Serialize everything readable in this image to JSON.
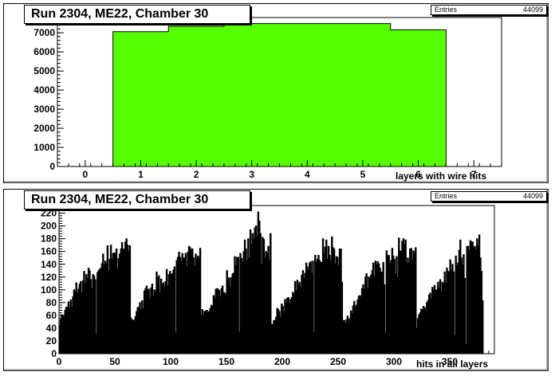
{
  "chart_data": [
    {
      "type": "bar",
      "title": "Run 2304, ME22, Chamber 30",
      "xlabel": "layers with wire hits",
      "ylabel": "",
      "stats": {
        "label": "Entries",
        "value": "44099"
      },
      "xlim": [
        -0.5,
        7.5
      ],
      "ylim": [
        0,
        7800
      ],
      "xticks": [
        "0",
        "1",
        "2",
        "3",
        "4",
        "5",
        "6",
        "7"
      ],
      "yticks": [
        "0",
        "1000",
        "2000",
        "3000",
        "4000",
        "5000",
        "6000",
        "7000"
      ],
      "bin_edges": [
        0.5,
        1.5,
        2.5,
        3.5,
        4.5,
        5.5,
        6.5
      ],
      "values": [
        7060,
        7340,
        7480,
        7480,
        7480,
        7160
      ],
      "fill_color": "#55ff00",
      "grid": false
    },
    {
      "type": "bar",
      "title": "Run 2304, ME22, Chamber 30",
      "xlabel": "hits in all layers",
      "ylabel": "",
      "stats": {
        "label": "Entries",
        "value": "44099"
      },
      "xlim": [
        0,
        390
      ],
      "ylim": [
        0,
        232
      ],
      "xticks": [
        "0",
        "50",
        "100",
        "150",
        "200",
        "250",
        "300",
        "350"
      ],
      "yticks": [
        "0",
        "20",
        "40",
        "60",
        "80",
        "100",
        "120",
        "140",
        "160",
        "180",
        "200",
        "220"
      ],
      "bin_width": 1,
      "values": [
        44,
        54,
        61,
        60,
        58,
        68,
        73,
        71,
        81,
        71,
        84,
        73,
        89,
        100,
        97,
        111,
        95,
        101,
        109,
        113,
        95,
        114,
        129,
        110,
        124,
        118,
        134,
        130,
        116,
        102,
        124,
        122,
        116,
        31,
        127,
        130,
        132,
        134,
        141,
        156,
        139,
        145,
        141,
        169,
        130,
        148,
        170,
        148,
        157,
        158,
        156,
        164,
        133,
        149,
        156,
        164,
        174,
        164,
        163,
        175,
        180,
        170,
        160,
        169,
        56,
        52,
        53,
        51,
        58,
        66,
        72,
        73,
        80,
        70,
        83,
        70,
        98,
        102,
        106,
        100,
        101,
        88,
        103,
        109,
        90,
        100,
        97,
        128,
        119,
        122,
        95,
        117,
        108,
        111,
        104,
        113,
        132,
        106,
        124,
        129,
        124,
        125,
        131,
        136,
        33,
        146,
        151,
        159,
        151,
        144,
        157,
        150,
        150,
        157,
        136,
        159,
        168,
        166,
        162,
        164,
        150,
        138,
        156,
        149,
        153,
        149,
        165,
        60,
        69,
        61,
        66,
        67,
        68,
        64,
        66,
        71,
        76,
        74,
        91,
        86,
        101,
        102,
        101,
        99,
        89,
        102,
        106,
        96,
        95,
        92,
        130,
        116,
        119,
        104,
        119,
        125,
        126,
        152,
        138,
        151,
        151,
        34,
        157,
        149,
        143,
        160,
        178,
        164,
        146,
        180,
        149,
        194,
        171,
        188,
        180,
        197,
        200,
        184,
        222,
        208,
        188,
        140,
        182,
        179,
        150,
        160,
        156,
        168,
        146,
        188,
        46,
        46,
        52,
        52,
        57,
        71,
        69,
        66,
        57,
        78,
        74,
        65,
        85,
        80,
        87,
        88,
        79,
        85,
        88,
        96,
        93,
        113,
        99,
        115,
        107,
        112,
        104,
        123,
        130,
        118,
        126,
        142,
        136,
        131,
        142,
        144,
        126,
        145,
        34,
        154,
        143,
        148,
        154,
        146,
        143,
        143,
        180,
        157,
        167,
        178,
        148,
        168,
        154,
        145,
        183,
        166,
        164,
        141,
        152,
        151,
        138,
        164,
        164,
        112,
        52,
        52,
        47,
        53,
        59,
        52,
        55,
        67,
        63,
        75,
        82,
        72,
        76,
        84,
        90,
        91,
        89,
        102,
        108,
        101,
        120,
        125,
        102,
        120,
        118,
        123,
        130,
        142,
        120,
        145,
        139,
        144,
        141,
        134,
        128,
        127,
        143,
        108,
        31,
        161,
        152,
        154,
        140,
        146,
        165,
        153,
        148,
        125,
        152,
        120,
        181,
        161,
        160,
        176,
        180,
        171,
        178,
        141,
        150,
        142,
        164,
        165,
        146,
        161,
        157,
        166,
        40,
        55,
        61,
        64,
        70,
        68,
        74,
        72,
        68,
        80,
        83,
        92,
        95,
        86,
        104,
        101,
        107,
        100,
        99,
        112,
        103,
        116,
        97,
        112,
        109,
        128,
        110,
        134,
        129,
        128,
        147,
        130,
        140,
        128,
        28,
        153,
        138,
        142,
        162,
        178,
        150,
        139,
        155,
        118,
        14,
        168,
        168,
        162,
        177,
        175,
        175,
        166,
        168,
        163,
        180,
        169,
        186,
        150,
        129,
        83
      ]
    }
  ]
}
